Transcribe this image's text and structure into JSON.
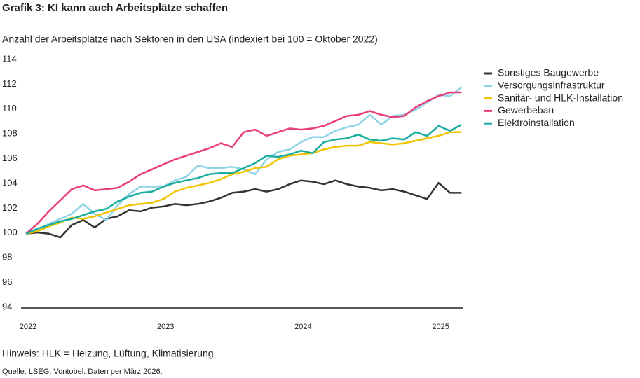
{
  "chart_data": {
    "type": "line",
    "title": "Grafik 3: KI kann auch Arbeitsplätze schaffen",
    "subtitle": "Anzahl der Arbeitsplätze nach Sektoren in den USA (indexiert bei 100 = Oktober 2022)",
    "note": "Hinweis: HLK = Heizung, Lüftung, Klimatisierung",
    "source": "Quelle: LSEG, Vontobel. Daten per März 2026.",
    "categories": [
      "2022",
      null,
      null,
      null,
      null,
      null,
      null,
      null,
      null,
      null,
      null,
      null,
      "2023",
      null,
      null,
      null,
      null,
      null,
      null,
      null,
      null,
      null,
      null,
      null,
      "2024",
      null,
      null,
      null,
      null,
      null,
      null,
      null,
      null,
      null,
      null,
      null,
      "2025",
      null,
      null
    ],
    "ylim": [
      94,
      114
    ],
    "yticks": [
      94,
      96,
      98,
      100,
      102,
      104,
      106,
      108,
      110,
      112,
      114
    ],
    "grid": false,
    "legend": "right",
    "series": [
      {
        "name": "Sonstiges Baugewerbe",
        "color": "#333333",
        "values": [
          100,
          100.1,
          100,
          99.7,
          100.7,
          101.1,
          100.5,
          101.2,
          101.4,
          101.9,
          101.8,
          102.1,
          102.2,
          102.4,
          102.3,
          102.4,
          102.6,
          102.9,
          103.3,
          103.4,
          103.6,
          103.4,
          103.6,
          104.0,
          104.3,
          104.2,
          104.0,
          104.3,
          104.0,
          103.8,
          103.7,
          103.5,
          103.6,
          103.4,
          103.1,
          102.8,
          104.1,
          103.3,
          103.3
        ]
      },
      {
        "name": "Versorgungsinfrastruktur",
        "color": "#8fd3e6",
        "values": [
          100,
          100.3,
          100.8,
          101.2,
          101.6,
          102.4,
          101.6,
          101.1,
          102.3,
          103.2,
          103.8,
          103.8,
          103.8,
          104.3,
          104.6,
          105.5,
          105.3,
          105.3,
          105.4,
          105.2,
          104.8,
          106.0,
          106.6,
          106.8,
          107.4,
          107.8,
          107.8,
          108.3,
          108.6,
          108.8,
          109.6,
          108.8,
          109.5,
          109.6,
          110.0,
          110.6,
          111.2,
          111.1,
          111.8
        ]
      },
      {
        "name": "Sanitär- und HLK-Installation",
        "color": "#f2c400",
        "values": [
          100,
          100.2,
          100.6,
          100.9,
          101.3,
          101.2,
          101.4,
          101.7,
          102.0,
          102.3,
          102.4,
          102.5,
          102.8,
          103.4,
          103.7,
          103.9,
          104.1,
          104.4,
          104.8,
          105.0,
          105.3,
          105.4,
          106.0,
          106.3,
          106.4,
          106.5,
          106.8,
          107.0,
          107.1,
          107.1,
          107.4,
          107.3,
          107.2,
          107.3,
          107.5,
          107.7,
          107.9,
          108.2,
          108.2
        ]
      },
      {
        "name": "Gewerbebau",
        "color": "#e83e7a",
        "values": [
          100,
          100.8,
          101.8,
          102.7,
          103.6,
          103.9,
          103.5,
          103.6,
          103.7,
          104.2,
          104.8,
          105.2,
          105.6,
          106.0,
          106.3,
          106.6,
          106.9,
          107.3,
          107.0,
          108.2,
          108.4,
          107.9,
          108.2,
          108.5,
          108.4,
          108.5,
          108.7,
          109.1,
          109.5,
          109.6,
          109.9,
          109.6,
          109.4,
          109.5,
          110.2,
          110.7,
          111.1,
          111.4,
          111.4
        ]
      },
      {
        "name": "Elektroinstallation",
        "color": "#1aaea0",
        "values": [
          100,
          100.4,
          100.7,
          101.0,
          101.2,
          101.5,
          101.8,
          102.0,
          102.6,
          103.0,
          103.3,
          103.4,
          103.8,
          104.1,
          104.3,
          104.5,
          104.8,
          104.9,
          104.9,
          105.3,
          105.7,
          106.3,
          106.2,
          106.4,
          106.7,
          106.5,
          107.4,
          107.6,
          107.7,
          108.0,
          107.6,
          107.5,
          107.7,
          107.6,
          108.2,
          107.9,
          108.7,
          108.3,
          108.8
        ]
      }
    ]
  }
}
